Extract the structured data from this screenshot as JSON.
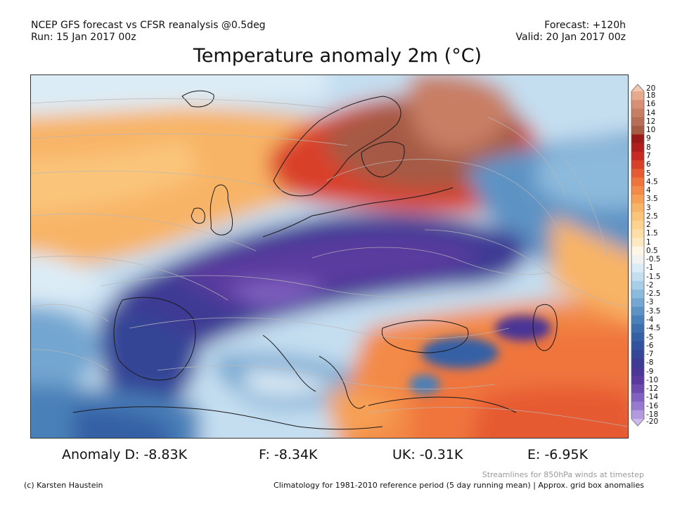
{
  "header": {
    "model_line": "NCEP GFS forecast vs CFSR reanalysis @0.5deg",
    "run_line": "Run: 15 Jan 2017 00z",
    "forecast_line": "Forecast: +120h",
    "valid_line": "Valid: 20 Jan 2017 00z"
  },
  "title": "Temperature anomaly 2m (°C)",
  "colorbar": {
    "levels": [
      {
        "label": "20",
        "color": "#f2c8b2"
      },
      {
        "label": "18",
        "color": "#e6a98e"
      },
      {
        "label": "16",
        "color": "#d88f75"
      },
      {
        "label": "14",
        "color": "#c87e63"
      },
      {
        "label": "12",
        "color": "#b86e56"
      },
      {
        "label": "10",
        "color": "#a65a44"
      },
      {
        "label": "9",
        "color": "#9a1a1a"
      },
      {
        "label": "8",
        "color": "#b01e1e"
      },
      {
        "label": "7",
        "color": "#c62a22"
      },
      {
        "label": "6",
        "color": "#d9402a"
      },
      {
        "label": "5",
        "color": "#e65a32"
      },
      {
        "label": "4.5",
        "color": "#ef743c"
      },
      {
        "label": "4",
        "color": "#f38a47"
      },
      {
        "label": "3.5",
        "color": "#f6a055"
      },
      {
        "label": "3",
        "color": "#f8b466"
      },
      {
        "label": "2.5",
        "color": "#fac57a"
      },
      {
        "label": "2",
        "color": "#fbd38f"
      },
      {
        "label": "1.5",
        "color": "#fcdfa6"
      },
      {
        "label": "1",
        "color": "#fde9c1"
      },
      {
        "label": "0.5",
        "color": "#fdf5e6"
      },
      {
        "label": "-0.5",
        "color": "#f2f2f2"
      },
      {
        "label": "-1",
        "color": "#dcecf6"
      },
      {
        "label": "-1.5",
        "color": "#c4def0"
      },
      {
        "label": "-2",
        "color": "#a8cde7"
      },
      {
        "label": "-2.5",
        "color": "#8cbadc"
      },
      {
        "label": "-3",
        "color": "#73a6d0"
      },
      {
        "label": "-3.5",
        "color": "#5d93c4"
      },
      {
        "label": "-4",
        "color": "#4a80b8"
      },
      {
        "label": "-4.5",
        "color": "#3d6fae"
      },
      {
        "label": "-5",
        "color": "#3560a6"
      },
      {
        "label": "-6",
        "color": "#33519e"
      },
      {
        "label": "-7",
        "color": "#364596"
      },
      {
        "label": "-8",
        "color": "#3d3b94"
      },
      {
        "label": "-9",
        "color": "#4a3696"
      },
      {
        "label": "-10",
        "color": "#5a3a9e"
      },
      {
        "label": "-12",
        "color": "#6c4aae"
      },
      {
        "label": "-14",
        "color": "#8060c0"
      },
      {
        "label": "-16",
        "color": "#977ad0"
      },
      {
        "label": "-18",
        "color": "#b39adf"
      },
      {
        "label": "-20",
        "color": "#cdb9ec"
      }
    ]
  },
  "stats": {
    "anomaly_d": "Anomaly D: -8.83K",
    "f": "F: -8.34K",
    "uk": "UK: -0.31K",
    "e": "E: -6.95K"
  },
  "footer": {
    "streamline_note": "Streamlines for 850hPa winds at timestep",
    "credit": "(c) Karsten Haustein",
    "climatology_note": "Climatology for 1981-2010 reference period (5 day running mean) | Approx. grid box anomalies"
  }
}
